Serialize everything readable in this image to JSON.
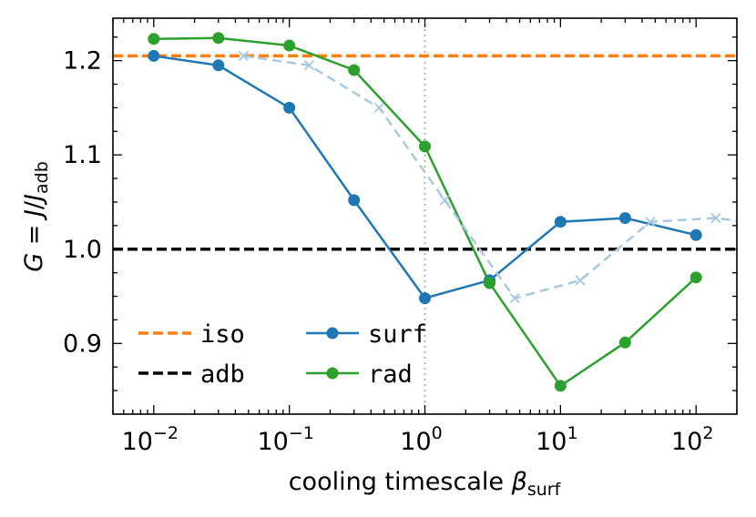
{
  "chart_data": {
    "type": "line",
    "xscale": "log",
    "xlim": [
      0.005,
      200
    ],
    "ylim": [
      0.825,
      1.245
    ],
    "xlabel": "cooling timescale",
    "xlabel_symbol": "β",
    "xlabel_sub": "surf",
    "ylabel_parts": {
      "g": "G",
      "eq": " = ",
      "j": "J",
      "slash": "/",
      "j2": "J",
      "sub": "adb"
    },
    "xticks": [
      {
        "value": 0.01,
        "base": "10",
        "exp": "−2"
      },
      {
        "value": 0.1,
        "base": "10",
        "exp": "−1"
      },
      {
        "value": 1,
        "base": "10",
        "exp": "0"
      },
      {
        "value": 10,
        "base": "10",
        "exp": "1"
      },
      {
        "value": 100,
        "base": "10",
        "exp": "2"
      }
    ],
    "yticks": [
      {
        "value": 0.9,
        "label": "0.9"
      },
      {
        "value": 1.0,
        "label": "1.0"
      },
      {
        "value": 1.1,
        "label": "1.1"
      },
      {
        "value": 1.2,
        "label": "1.2"
      }
    ],
    "reference_lines": [
      {
        "name": "iso",
        "y": 1.205,
        "color": "#ff7f0e"
      },
      {
        "name": "adb",
        "y": 1.0,
        "color": "#000000"
      }
    ],
    "vline": {
      "x": 1,
      "color": "#b0b0b0"
    },
    "series": [
      {
        "name": "surf",
        "color": "#1f77b4",
        "x": [
          0.01,
          0.03,
          0.1,
          0.3,
          1,
          3,
          10,
          30,
          100
        ],
        "y": [
          1.205,
          1.195,
          1.15,
          1.052,
          0.948,
          0.967,
          1.029,
          1.033,
          1.015
        ]
      },
      {
        "name": "rad",
        "color": "#2ca02c",
        "x": [
          0.01,
          0.03,
          0.1,
          0.3,
          1,
          3,
          10,
          30,
          100
        ],
        "y": [
          1.223,
          1.224,
          1.216,
          1.19,
          1.109,
          0.964,
          0.855,
          0.901,
          0.97
        ]
      },
      {
        "color": "#a6c8e0",
        "x": [
          0.046,
          0.14,
          0.46,
          1.4,
          4.6,
          14,
          46,
          140,
          200
        ],
        "y": [
          1.205,
          1.195,
          1.15,
          1.052,
          0.948,
          0.967,
          1.029,
          1.033,
          1.03
        ]
      }
    ],
    "legend_placement": "lower-left",
    "legend": [
      {
        "name": "iso"
      },
      {
        "name": "adb"
      },
      {
        "name": "surf"
      },
      {
        "name": "rad"
      }
    ]
  }
}
